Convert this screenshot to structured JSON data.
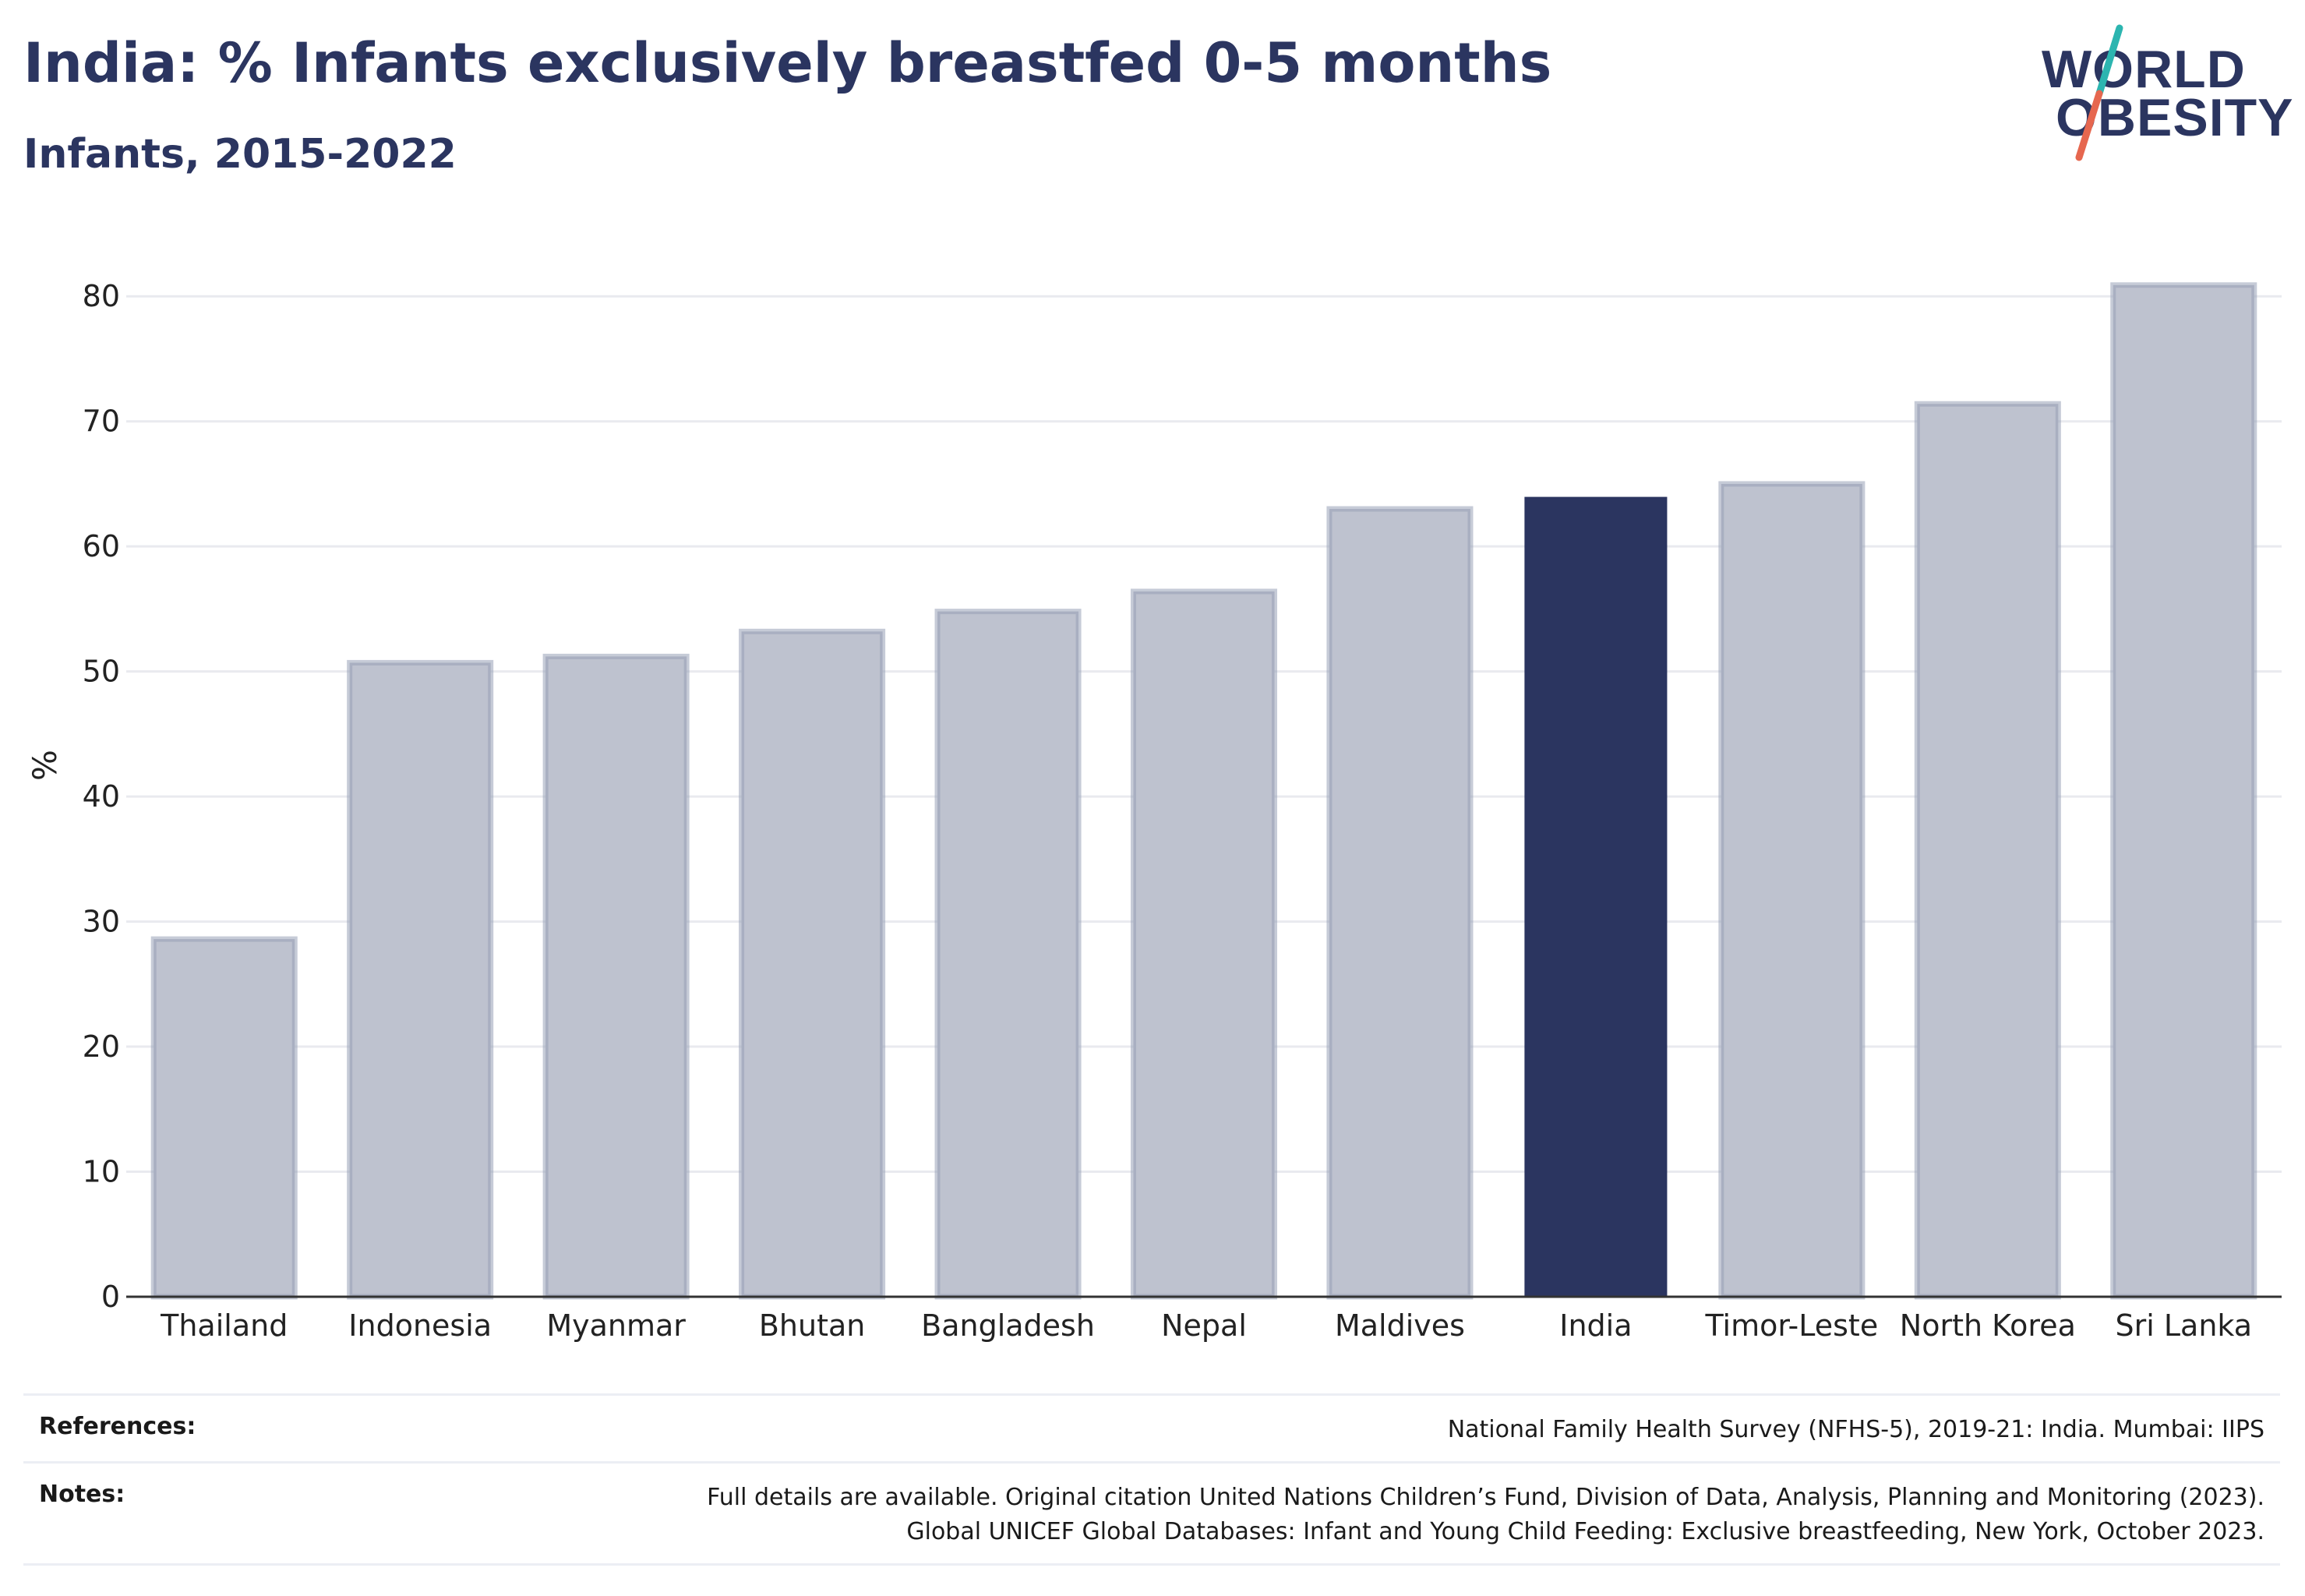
{
  "header": {
    "title": "India: % Infants exclusively breastfed 0-5 months",
    "subtitle": "Infants, 2015-2022"
  },
  "logo": {
    "line1": "WORLD",
    "line2": "OBESITY",
    "slash_colors": [
      "#2cb5b0",
      "#e6674f"
    ]
  },
  "chart_data": {
    "type": "bar",
    "categories": [
      "Thailand",
      "Indonesia",
      "Myanmar",
      "Bhutan",
      "Bangladesh",
      "Nepal",
      "Maldives",
      "India",
      "Timor-Leste",
      "North Korea",
      "Sri Lanka"
    ],
    "values": [
      28.6,
      50.7,
      51.2,
      53.2,
      54.8,
      56.4,
      63.0,
      63.9,
      65.0,
      71.4,
      80.9
    ],
    "highlight": "India",
    "title": "India: % Infants exclusively breastfed 0-5 months",
    "subtitle": "Infants, 2015-2022",
    "xlabel": "",
    "ylabel": "%",
    "ylim": [
      0,
      85
    ],
    "yticks": [
      0,
      10,
      20,
      30,
      40,
      50,
      60,
      70,
      80
    ],
    "grid": true,
    "colors": {
      "bar": "#bec2cf",
      "bar_border": "#98a0b6",
      "highlight": "#2b3560",
      "grid": "#e9eaef",
      "axis": "#333333"
    }
  },
  "footer": {
    "references_label": "References:",
    "references_text": "National Family Health Survey (NFHS-5), 2019-21: India. Mumbai: IIPS",
    "notes_label": "Notes:",
    "notes_text_1": "Full details are available. Original citation United Nations Children’s Fund, Division of Data, Analysis, Planning and Monitoring (2023).",
    "notes_text_2": "Global UNICEF Global Databases: Infant and Young Child Feeding: Exclusive breastfeeding, New York, October 2023."
  }
}
